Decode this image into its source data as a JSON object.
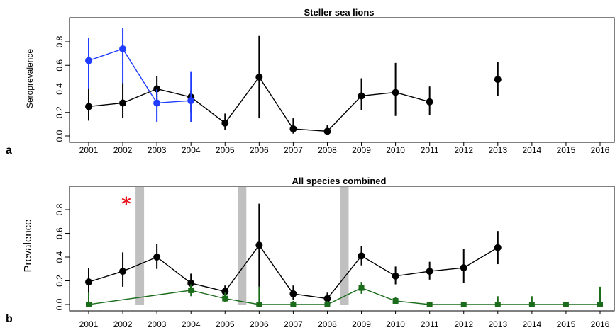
{
  "colors": {
    "black": "#000000",
    "blue": "#1f3cff",
    "green": "#1a6b1a",
    "gray": "#c0c0c0",
    "star": "#e8141e"
  },
  "chart_data": [
    {
      "panel": "a",
      "type": "line",
      "title": "Steller sea lions",
      "ylabel": "Seroprevalence",
      "ylim": [
        0,
        0.9
      ],
      "yticks": [
        "0.0",
        "0.2",
        "0.4",
        "0.6",
        "0.8"
      ],
      "categories": [
        "2001",
        "2002",
        "2003",
        "2004",
        "2005",
        "2006",
        "2007",
        "2008",
        "2009",
        "2010",
        "2011",
        "2012",
        "2013",
        "2014",
        "2015",
        "2016"
      ],
      "series": [
        {
          "color": "#000000",
          "marker": "circle",
          "points": [
            {
              "x": "2001",
              "y": 0.25,
              "lo": 0.13,
              "hi": 0.4
            },
            {
              "x": "2002",
              "y": 0.28,
              "lo": 0.15,
              "hi": 0.45
            },
            {
              "x": "2003",
              "y": 0.4,
              "lo": 0.3,
              "hi": 0.51
            },
            {
              "x": "2004",
              "y": 0.33,
              "lo": 0.2,
              "hi": 0.39
            },
            {
              "x": "2005",
              "y": 0.11,
              "lo": 0.05,
              "hi": 0.19
            },
            {
              "x": "2006",
              "y": 0.5,
              "lo": 0.15,
              "hi": 0.85
            },
            {
              "x": "2007",
              "y": 0.06,
              "lo": 0.02,
              "hi": 0.15
            },
            {
              "x": "2008",
              "y": 0.04,
              "lo": 0.01,
              "hi": 0.09
            },
            {
              "x": "2009",
              "y": 0.34,
              "lo": 0.22,
              "hi": 0.49
            },
            {
              "x": "2010",
              "y": 0.37,
              "lo": 0.17,
              "hi": 0.62
            },
            {
              "x": "2011",
              "y": 0.29,
              "lo": 0.18,
              "hi": 0.42
            }
          ]
        },
        {
          "color": "#000000",
          "marker": "circle",
          "points": [
            {
              "x": "2013",
              "y": 0.48,
              "lo": 0.34,
              "hi": 0.63
            }
          ]
        },
        {
          "color": "#1f3cff",
          "marker": "circle",
          "points": [
            {
              "x": "2001",
              "y": 0.64,
              "lo": 0.4,
              "hi": 0.83
            },
            {
              "x": "2002",
              "y": 0.74,
              "lo": 0.45,
              "hi": 0.92
            },
            {
              "x": "2003",
              "y": 0.28,
              "lo": 0.12,
              "hi": 0.4
            },
            {
              "x": "2004",
              "y": 0.3,
              "lo": 0.12,
              "hi": 0.55
            }
          ]
        }
      ]
    },
    {
      "panel": "b",
      "type": "line",
      "title": "All species combined",
      "ylabel": "Prevalence",
      "ylim": [
        0,
        0.9
      ],
      "yticks": [
        "0.0",
        "0.2",
        "0.4",
        "0.6",
        "0.8"
      ],
      "categories": [
        "2001",
        "2002",
        "2003",
        "2004",
        "2005",
        "2006",
        "2007",
        "2008",
        "2009",
        "2010",
        "2011",
        "2012",
        "2013",
        "2014",
        "2015",
        "2016"
      ],
      "shaded_periods": [
        2002.5,
        2005.5,
        2008.5
      ],
      "annotation": {
        "text": "*",
        "x": 2002.1,
        "y": 0.88
      },
      "series": [
        {
          "color": "#000000",
          "marker": "circle",
          "points": [
            {
              "x": "2001",
              "y": 0.19,
              "lo": 0.09,
              "hi": 0.31
            },
            {
              "x": "2002",
              "y": 0.28,
              "lo": 0.15,
              "hi": 0.44
            },
            {
              "x": "2003",
              "y": 0.4,
              "lo": 0.3,
              "hi": 0.51
            },
            {
              "x": "2004",
              "y": 0.18,
              "lo": 0.11,
              "hi": 0.26
            },
            {
              "x": "2005",
              "y": 0.11,
              "lo": 0.06,
              "hi": 0.16
            },
            {
              "x": "2006",
              "y": 0.5,
              "lo": 0.15,
              "hi": 0.85
            },
            {
              "x": "2007",
              "y": 0.09,
              "lo": 0.04,
              "hi": 0.16
            },
            {
              "x": "2008",
              "y": 0.05,
              "lo": 0.02,
              "hi": 0.1
            },
            {
              "x": "2009",
              "y": 0.41,
              "lo": 0.33,
              "hi": 0.49
            },
            {
              "x": "2010",
              "y": 0.24,
              "lo": 0.17,
              "hi": 0.32
            },
            {
              "x": "2011",
              "y": 0.28,
              "lo": 0.21,
              "hi": 0.36
            },
            {
              "x": "2012",
              "y": 0.31,
              "lo": 0.18,
              "hi": 0.47
            },
            {
              "x": "2013",
              "y": 0.48,
              "lo": 0.34,
              "hi": 0.62
            }
          ]
        },
        {
          "color": "#1a6b1a",
          "marker": "square",
          "points": [
            {
              "x": "2001",
              "y": 0.0,
              "lo": 0.0,
              "hi": 0.1
            },
            {
              "x": "2004",
              "y": 0.12,
              "lo": 0.07,
              "hi": 0.17
            },
            {
              "x": "2005",
              "y": 0.05,
              "lo": 0.02,
              "hi": 0.1
            },
            {
              "x": "2006",
              "y": 0.0,
              "lo": 0.0,
              "hi": 0.15
            },
            {
              "x": "2007",
              "y": 0.0,
              "lo": 0.0,
              "hi": 0.03
            },
            {
              "x": "2008",
              "y": 0.0,
              "lo": 0.0,
              "hi": 0.03
            },
            {
              "x": "2009",
              "y": 0.14,
              "lo": 0.09,
              "hi": 0.19
            },
            {
              "x": "2010",
              "y": 0.03,
              "lo": 0.01,
              "hi": 0.06
            },
            {
              "x": "2011",
              "y": 0.0,
              "lo": 0.0,
              "hi": 0.02
            },
            {
              "x": "2012",
              "y": 0.0,
              "lo": 0.0,
              "hi": 0.02
            },
            {
              "x": "2013",
              "y": 0.0,
              "lo": 0.0,
              "hi": 0.07
            },
            {
              "x": "2014",
              "y": 0.0,
              "lo": 0.0,
              "hi": 0.07
            },
            {
              "x": "2015",
              "y": 0.0,
              "lo": 0.0,
              "hi": 0.02
            },
            {
              "x": "2016",
              "y": 0.0,
              "lo": 0.0,
              "hi": 0.15
            }
          ]
        }
      ]
    }
  ]
}
